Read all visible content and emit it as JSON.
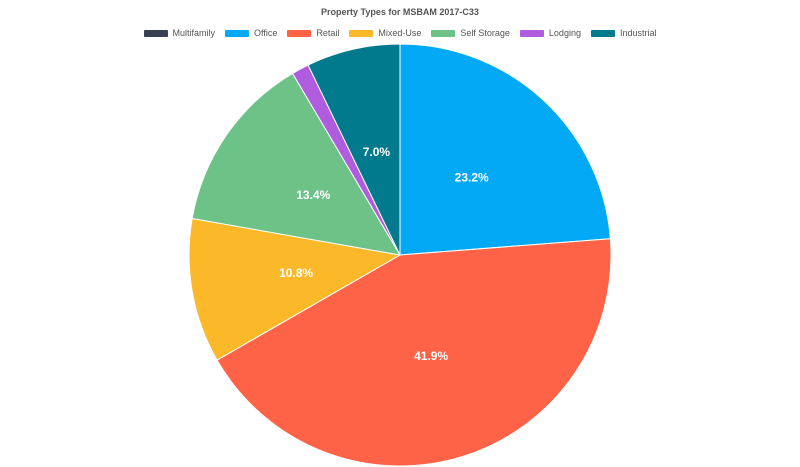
{
  "chart_data": {
    "type": "pie",
    "title": "Property Types for MSBAM 2017-C33",
    "legend_position": "top",
    "categories": [
      "Multifamily",
      "Office",
      "Retail",
      "Mixed-Use",
      "Self Storage",
      "Lodging",
      "Industrial"
    ],
    "values": [
      0.0,
      23.2,
      41.9,
      10.8,
      13.4,
      1.3,
      7.0
    ],
    "labels": [
      "",
      "23.2%",
      "41.9%",
      "10.8%",
      "13.4%",
      "",
      "7.0%"
    ],
    "colors": [
      "#374151",
      "#03a9f4",
      "#ff6347",
      "#fbb829",
      "#6cc287",
      "#b05cde",
      "#007a8c"
    ]
  }
}
